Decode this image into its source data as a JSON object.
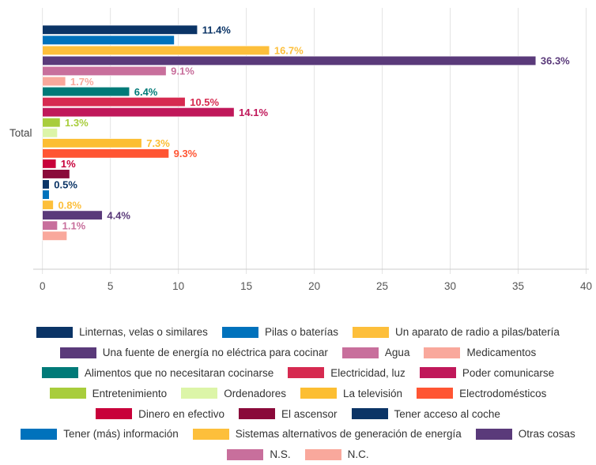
{
  "chart_data": {
    "type": "bar",
    "orientation": "horizontal",
    "categories": [
      "Total"
    ],
    "xlim": [
      0,
      40
    ],
    "xticks": [
      0,
      5,
      10,
      15,
      20,
      25,
      30,
      35,
      40
    ],
    "grid": true,
    "legend_placement": "bottom",
    "series": [
      {
        "name": "Linternas, velas o similares",
        "values": [
          11.4
        ],
        "label": "11.4%",
        "color": "#0b3466"
      },
      {
        "name": "Pilas o baterías",
        "values": [
          9.7
        ],
        "label": "",
        "color": "#0072bc"
      },
      {
        "name": "Un aparato de radio a pilas/batería",
        "values": [
          16.7
        ],
        "label": "16.7%",
        "color": "#fdbf3b"
      },
      {
        "name": "Una fuente de energía no eléctrica para cocinar",
        "values": [
          36.3
        ],
        "label": "36.3%",
        "color": "#5a3a7a"
      },
      {
        "name": "Agua",
        "values": [
          9.1
        ],
        "label": "9.1%",
        "color": "#c86f9c"
      },
      {
        "name": "Medicamentos",
        "values": [
          1.7
        ],
        "label": "1.7%",
        "color": "#f9a89c"
      },
      {
        "name": "Alimentos que no necesitaran cocinarse",
        "values": [
          6.4
        ],
        "label": "6.4%",
        "color": "#007a78"
      },
      {
        "name": "Electricidad, luz",
        "values": [
          10.5
        ],
        "label": "10.5%",
        "color": "#d62a50"
      },
      {
        "name": "Poder comunicarse",
        "values": [
          14.1
        ],
        "label": "14.1%",
        "color": "#c0185a"
      },
      {
        "name": "Entretenimiento",
        "values": [
          1.3
        ],
        "label": "1.3%",
        "color": "#a8cd3c"
      },
      {
        "name": "Ordenadores",
        "values": [
          1.1
        ],
        "label": "",
        "color": "#dcf5a8"
      },
      {
        "name": "La televisión",
        "values": [
          7.3
        ],
        "label": "7.3%",
        "color": "#fcbe32"
      },
      {
        "name": "Electrodomésticos",
        "values": [
          9.3
        ],
        "label": "9.3%",
        "color": "#ff5533"
      },
      {
        "name": "Dinero en efectivo",
        "values": [
          1.0
        ],
        "label": "1%",
        "color": "#c8003a"
      },
      {
        "name": "El ascensor",
        "values": [
          2.0
        ],
        "label": "",
        "color": "#8a0a3a"
      },
      {
        "name": "Tener acceso al coche",
        "values": [
          0.5
        ],
        "label": "0.5%",
        "color": "#0b3466"
      },
      {
        "name": "Tener (más) información",
        "values": [
          0.5
        ],
        "label": "",
        "color": "#0072bc"
      },
      {
        "name": "Sistemas alternativos de generación de energía",
        "values": [
          0.8
        ],
        "label": "0.8%",
        "color": "#fdbf3b"
      },
      {
        "name": "Otras cosas",
        "values": [
          4.4
        ],
        "label": "4.4%",
        "color": "#5a3a7a"
      },
      {
        "name": "N.S.",
        "values": [
          1.1
        ],
        "label": "1.1%",
        "color": "#c86f9c"
      },
      {
        "name": "N.C.",
        "values": [
          1.8
        ],
        "label": "",
        "color": "#f9a89c"
      }
    ]
  }
}
